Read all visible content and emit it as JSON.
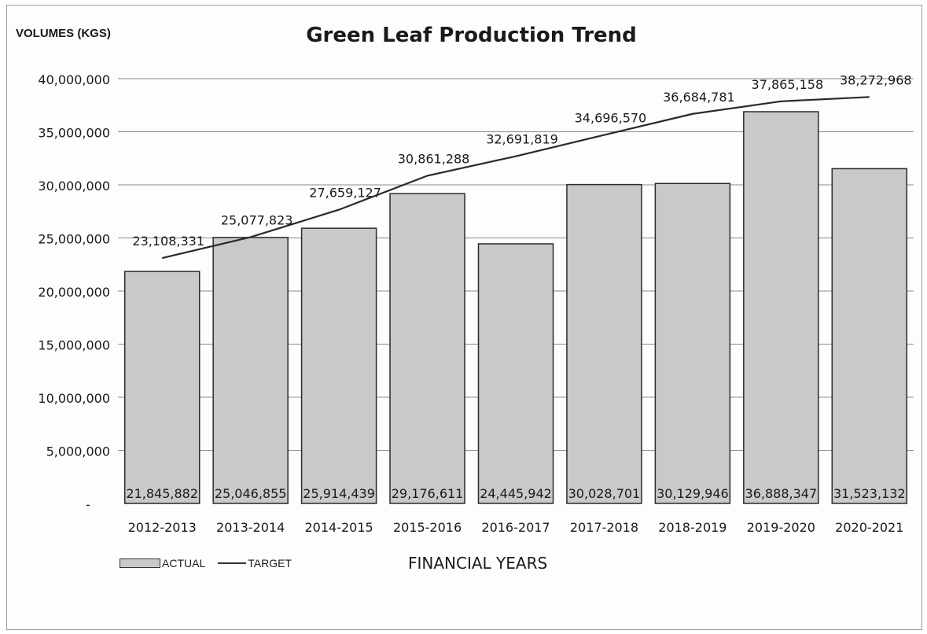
{
  "chart_data": {
    "type": "bar",
    "title": "Green Leaf Production Trend",
    "ylabel": "VOLUMES (KGS)",
    "xlabel": "FINANCIAL YEARS",
    "categories": [
      "2012-2013",
      "2013-2014",
      "2014-2015",
      "2015-2016",
      "2016-2017",
      "2017-2018",
      "2018-2019",
      "2019-2020",
      "2020-2021"
    ],
    "series": [
      {
        "name": "ACTUAL",
        "type": "bar",
        "values": [
          21845882,
          25046855,
          25914439,
          29176611,
          24445942,
          30028701,
          30129946,
          36888347,
          31523132
        ],
        "labels": [
          "21,845,882",
          "25,046,855",
          "25,914,439",
          "29,176,611",
          "24,445,942",
          "30,028,701",
          "30,129,946",
          "36,888,347",
          "31,523,132"
        ]
      },
      {
        "name": "TARGET",
        "type": "line",
        "values": [
          23108331,
          25077823,
          27659127,
          30861288,
          32691819,
          34696570,
          36684781,
          37865158,
          38272968
        ],
        "labels": [
          "23,108,331",
          "25,077,823",
          "27,659,127",
          "30,861,288",
          "32,691,819",
          "34,696,570",
          "36,684,781",
          "37,865,158",
          "38,272,968"
        ]
      }
    ],
    "ylim": [
      0,
      40000000
    ],
    "yticks": [
      0,
      5000000,
      10000000,
      15000000,
      20000000,
      25000000,
      30000000,
      35000000,
      40000000
    ],
    "ytick_labels": [
      "-",
      "5,000,000",
      "10,000,000",
      "15,000,000",
      "20,000,000",
      "25,000,000",
      "30,000,000",
      "35,000,000",
      "40,000,000"
    ],
    "grid": true,
    "legend_position": "bottom-left"
  },
  "colors": {
    "bar_fill": "#c9c9c9",
    "bar_stroke": "#2a2a2a",
    "line": "#2a2a2a",
    "grid": "#8a8a8a",
    "text": "#1a1a1a"
  }
}
